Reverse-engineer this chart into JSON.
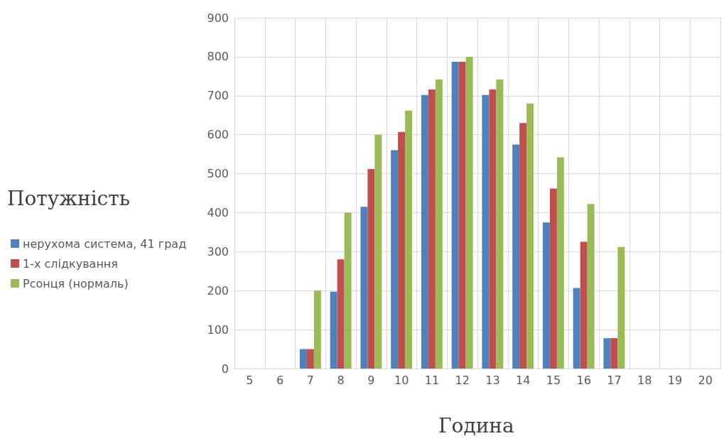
{
  "chart_data": {
    "type": "bar",
    "xlabel": "Година",
    "ylabel": "Потужність",
    "categories": [
      "5",
      "6",
      "7",
      "8",
      "9",
      "10",
      "11",
      "12",
      "13",
      "14",
      "15",
      "16",
      "17",
      "18",
      "19",
      "20"
    ],
    "series": [
      {
        "name": "нерухома система, 41 град",
        "color": "#4f81bd",
        "values": [
          0,
          0,
          50,
          197,
          415,
          560,
          702,
          787,
          702,
          575,
          375,
          207,
          78,
          0,
          0,
          0
        ]
      },
      {
        "name": "1-х слідкування",
        "color": "#c0504d",
        "values": [
          0,
          0,
          50,
          280,
          512,
          607,
          716,
          787,
          716,
          630,
          462,
          325,
          78,
          0,
          0,
          0
        ]
      },
      {
        "name": "Рсонця (нормаль)",
        "color": "#9bbb59",
        "values": [
          0,
          0,
          200,
          400,
          600,
          662,
          742,
          800,
          742,
          680,
          542,
          422,
          312,
          0,
          0,
          0
        ]
      }
    ],
    "ylim": [
      0,
      900
    ],
    "yticks": [
      0,
      100,
      200,
      300,
      400,
      500,
      600,
      700,
      800,
      900
    ],
    "grid": true,
    "legend": "left"
  }
}
